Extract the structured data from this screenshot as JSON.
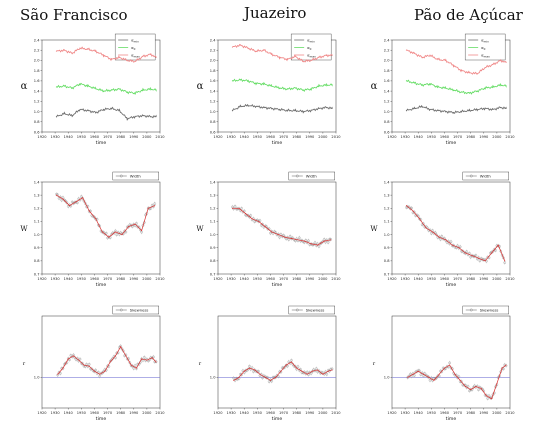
{
  "stations": [
    "São Francisco",
    "Juazeiro",
    "Pão de Açúcar"
  ],
  "colors": {
    "max": "#f08a8a",
    "zero": "#66dd66",
    "min": "#707070",
    "dot": "#888888",
    "fit": "#d93030",
    "ref": "#7d7dd8"
  },
  "chart_data": [
    {
      "station": "São Francisco",
      "type": "line",
      "row": "alpha",
      "xlabel": "time",
      "ylabel": "α",
      "xlim": [
        1920,
        2010
      ],
      "ylim": [
        0.6,
        2.4
      ],
      "xticks": [
        "1920",
        "1930",
        "1940",
        "1950",
        "1960",
        "1970",
        "1980",
        "1990",
        "2000",
        "2010"
      ],
      "yticks": [
        "0.6",
        "0.8",
        "1.0",
        "1.2",
        "1.4",
        "1.6",
        "1.8",
        "2.0",
        "2.2",
        "2.4"
      ],
      "legend": [
        "α_min",
        "α_0",
        "α_max"
      ],
      "legend_position": "top-right",
      "series": [
        {
          "key": "max",
          "x": [
            1931,
            1937,
            1943,
            1949,
            1955,
            1961,
            1967,
            1973,
            1979,
            1985,
            1991,
            1997,
            2003,
            2007
          ],
          "values": [
            2.18,
            2.2,
            2.14,
            2.24,
            2.22,
            2.18,
            2.1,
            2.02,
            2.06,
            2.0,
            1.98,
            2.08,
            2.12,
            2.06
          ]
        },
        {
          "key": "zero",
          "x": [
            1931,
            1937,
            1943,
            1949,
            1955,
            1961,
            1967,
            1973,
            1979,
            1985,
            1991,
            1997,
            2003,
            2007
          ],
          "values": [
            1.48,
            1.5,
            1.46,
            1.54,
            1.5,
            1.45,
            1.4,
            1.42,
            1.44,
            1.38,
            1.36,
            1.42,
            1.44,
            1.42
          ]
        },
        {
          "key": "min",
          "x": [
            1931,
            1937,
            1943,
            1949,
            1955,
            1961,
            1967,
            1973,
            1979,
            1985,
            1991,
            1997,
            2003,
            2007
          ],
          "values": [
            0.9,
            0.96,
            0.92,
            1.04,
            1.02,
            0.98,
            1.04,
            1.06,
            1.02,
            0.86,
            0.9,
            0.92,
            0.9,
            0.9
          ]
        }
      ]
    },
    {
      "station": "Juazeiro",
      "type": "line",
      "row": "alpha",
      "xlabel": "time",
      "ylabel": "α",
      "xlim": [
        1920,
        2010
      ],
      "ylim": [
        0.6,
        2.4
      ],
      "xticks": [
        "1920",
        "1930",
        "1940",
        "1950",
        "1960",
        "1970",
        "1980",
        "1990",
        "2000",
        "2010"
      ],
      "yticks": [
        "0.6",
        "0.8",
        "1.0",
        "1.2",
        "1.4",
        "1.6",
        "1.8",
        "2.0",
        "2.2",
        "2.4"
      ],
      "legend": [
        "α_min",
        "α_0",
        "α_max"
      ],
      "legend_position": "top-right",
      "series": [
        {
          "key": "max",
          "x": [
            1931,
            1937,
            1943,
            1949,
            1955,
            1961,
            1967,
            1973,
            1979,
            1985,
            1991,
            1997,
            2003,
            2007
          ],
          "values": [
            2.26,
            2.3,
            2.24,
            2.18,
            2.2,
            2.12,
            2.06,
            2.02,
            2.08,
            1.98,
            2.0,
            2.06,
            2.1,
            2.1
          ]
        },
        {
          "key": "zero",
          "x": [
            1931,
            1937,
            1943,
            1949,
            1955,
            1961,
            1967,
            1973,
            1979,
            1985,
            1991,
            1997,
            2003,
            2007
          ],
          "values": [
            1.6,
            1.62,
            1.6,
            1.55,
            1.54,
            1.5,
            1.46,
            1.44,
            1.46,
            1.42,
            1.44,
            1.5,
            1.52,
            1.52
          ]
        },
        {
          "key": "min",
          "x": [
            1931,
            1937,
            1943,
            1949,
            1955,
            1961,
            1967,
            1973,
            1979,
            1985,
            1991,
            1997,
            2003,
            2007
          ],
          "values": [
            1.02,
            1.1,
            1.12,
            1.1,
            1.08,
            1.06,
            1.04,
            1.02,
            1.02,
            1.0,
            1.02,
            1.06,
            1.08,
            1.06
          ]
        }
      ]
    },
    {
      "station": "Pão de Açúcar",
      "type": "line",
      "row": "alpha",
      "xlabel": "time",
      "ylabel": "α",
      "xlim": [
        1920,
        2010
      ],
      "ylim": [
        0.6,
        2.4
      ],
      "xticks": [
        "1920",
        "1930",
        "1940",
        "1950",
        "1960",
        "1970",
        "1980",
        "1990",
        "2000",
        "2010"
      ],
      "yticks": [
        "0.6",
        "0.8",
        "1.0",
        "1.2",
        "1.4",
        "1.6",
        "1.8",
        "2.0",
        "2.2",
        "2.4"
      ],
      "legend": [
        "α_min",
        "α_0",
        "α_max"
      ],
      "legend_position": "top-right",
      "series": [
        {
          "key": "max",
          "x": [
            1931,
            1937,
            1943,
            1949,
            1955,
            1961,
            1967,
            1973,
            1979,
            1985,
            1991,
            1997,
            2003,
            2007
          ],
          "values": [
            2.2,
            2.14,
            2.06,
            2.1,
            2.02,
            2.0,
            1.9,
            1.8,
            1.76,
            1.74,
            1.86,
            1.92,
            2.0,
            1.96
          ]
        },
        {
          "key": "zero",
          "x": [
            1931,
            1937,
            1943,
            1949,
            1955,
            1961,
            1967,
            1973,
            1979,
            1985,
            1991,
            1997,
            2003,
            2007
          ],
          "values": [
            1.6,
            1.56,
            1.52,
            1.54,
            1.48,
            1.46,
            1.42,
            1.38,
            1.36,
            1.4,
            1.46,
            1.48,
            1.52,
            1.5
          ]
        },
        {
          "key": "min",
          "x": [
            1931,
            1937,
            1943,
            1949,
            1955,
            1961,
            1967,
            1973,
            1979,
            1985,
            1991,
            1997,
            2003,
            2007
          ],
          "values": [
            1.02,
            1.06,
            1.1,
            1.04,
            1.02,
            1.0,
            0.98,
            1.0,
            1.02,
            1.04,
            1.06,
            1.04,
            1.08,
            1.06
          ]
        }
      ]
    },
    {
      "station": "São Francisco",
      "type": "line",
      "row": "width",
      "xlabel": "time",
      "ylabel": "W",
      "xlim": [
        1920,
        2010
      ],
      "ylim": [
        0.7,
        1.4
      ],
      "xticks": [
        "1920",
        "1930",
        "1940",
        "1950",
        "1960",
        "1970",
        "1980",
        "1990",
        "2000",
        "2010"
      ],
      "yticks": [
        "0.7",
        "0.8",
        "0.9",
        "1.0",
        "1.1",
        "1.2",
        "1.3",
        "1.4"
      ],
      "legend": [
        "Width"
      ],
      "legend_position": "top-right",
      "x": [
        1931,
        1936,
        1941,
        1946,
        1951,
        1956,
        1961,
        1966,
        1971,
        1976,
        1981,
        1986,
        1991,
        1996,
        2001,
        2006
      ],
      "values": [
        1.3,
        1.27,
        1.22,
        1.25,
        1.28,
        1.18,
        1.12,
        1.02,
        0.98,
        1.02,
        1.0,
        1.06,
        1.08,
        1.03,
        1.2,
        1.22
      ]
    },
    {
      "station": "Juazeiro",
      "type": "line",
      "row": "width",
      "xlabel": "time",
      "ylabel": "W",
      "xlim": [
        1920,
        2010
      ],
      "ylim": [
        0.7,
        1.4
      ],
      "xticks": [
        "1920",
        "1930",
        "1940",
        "1950",
        "1960",
        "1970",
        "1980",
        "1990",
        "2000",
        "2010"
      ],
      "yticks": [
        "0.7",
        "0.8",
        "0.9",
        "1.0",
        "1.1",
        "1.2",
        "1.3",
        "1.4"
      ],
      "legend": [
        "Width"
      ],
      "legend_position": "top-right",
      "x": [
        1931,
        1936,
        1941,
        1946,
        1951,
        1956,
        1961,
        1966,
        1971,
        1976,
        1981,
        1986,
        1991,
        1996,
        2001,
        2006
      ],
      "values": [
        1.2,
        1.2,
        1.16,
        1.12,
        1.1,
        1.06,
        1.02,
        1.0,
        0.98,
        0.97,
        0.96,
        0.95,
        0.93,
        0.92,
        0.95,
        0.96
      ]
    },
    {
      "station": "Pão de Açúcar",
      "type": "line",
      "row": "width",
      "xlabel": "time",
      "ylabel": "W",
      "xlim": [
        1920,
        2010
      ],
      "ylim": [
        0.7,
        1.4
      ],
      "xticks": [
        "1920",
        "1930",
        "1940",
        "1950",
        "1960",
        "1970",
        "1980",
        "1990",
        "2000",
        "2010"
      ],
      "yticks": [
        "0.7",
        "0.8",
        "0.9",
        "1.0",
        "1.1",
        "1.2",
        "1.3",
        "1.4"
      ],
      "legend": [
        "Width"
      ],
      "legend_position": "top-right",
      "x": [
        1931,
        1936,
        1941,
        1946,
        1951,
        1956,
        1961,
        1966,
        1971,
        1976,
        1981,
        1986,
        1991,
        1996,
        2001,
        2006
      ],
      "values": [
        1.22,
        1.18,
        1.12,
        1.05,
        1.02,
        0.98,
        0.96,
        0.92,
        0.9,
        0.86,
        0.84,
        0.82,
        0.8,
        0.86,
        0.92,
        0.8
      ]
    },
    {
      "station": "São Francisco",
      "type": "line",
      "row": "skewness",
      "xlabel": "time",
      "ylabel": "r",
      "xlim": [
        1920,
        2010
      ],
      "ylim": [
        0.5,
        2.0
      ],
      "xticks": [
        "1920",
        "1930",
        "1940",
        "1950",
        "1960",
        "1970",
        "1980",
        "1990",
        "2000",
        "2010"
      ],
      "yticks": [
        "1.0"
      ],
      "legend": [
        "Skewness"
      ],
      "legend_position": "top-right",
      "x": [
        1932,
        1936,
        1940,
        1944,
        1948,
        1952,
        1956,
        1960,
        1964,
        1968,
        1972,
        1976,
        1980,
        1984,
        1988,
        1992,
        1996,
        2000,
        2004,
        2007
      ],
      "values": [
        1.05,
        1.15,
        1.3,
        1.35,
        1.28,
        1.2,
        1.18,
        1.1,
        1.05,
        1.1,
        1.25,
        1.35,
        1.5,
        1.35,
        1.2,
        1.15,
        1.3,
        1.28,
        1.32,
        1.25
      ]
    },
    {
      "station": "Juazeiro",
      "type": "line",
      "row": "skewness",
      "xlabel": "time",
      "ylabel": "r",
      "xlim": [
        1920,
        2010
      ],
      "ylim": [
        0.5,
        2.0
      ],
      "xticks": [
        "1920",
        "1930",
        "1940",
        "1950",
        "1960",
        "1970",
        "1980",
        "1990",
        "2000",
        "2010"
      ],
      "yticks": [
        "1.0"
      ],
      "legend": [
        "Skewness"
      ],
      "legend_position": "top-right",
      "x": [
        1932,
        1936,
        1940,
        1944,
        1948,
        1952,
        1956,
        1960,
        1964,
        1968,
        1972,
        1976,
        1980,
        1984,
        1988,
        1992,
        1996,
        2000,
        2004,
        2007
      ],
      "values": [
        0.95,
        1.0,
        1.1,
        1.15,
        1.12,
        1.05,
        1.0,
        0.95,
        1.0,
        1.1,
        1.2,
        1.25,
        1.15,
        1.1,
        1.05,
        1.1,
        1.12,
        1.05,
        1.1,
        1.12
      ]
    },
    {
      "station": "Pão de Açúcar",
      "type": "line",
      "row": "skewness",
      "xlabel": "time",
      "ylabel": "r",
      "xlim": [
        1920,
        2010
      ],
      "ylim": [
        0.5,
        2.0
      ],
      "xticks": [
        "1920",
        "1930",
        "1940",
        "1950",
        "1960",
        "1970",
        "1980",
        "1990",
        "2000",
        "2010"
      ],
      "yticks": [
        "1.0"
      ],
      "legend": [
        "Skewness"
      ],
      "legend_position": "top-right",
      "x": [
        1932,
        1936,
        1940,
        1944,
        1948,
        1952,
        1956,
        1960,
        1964,
        1968,
        1972,
        1976,
        1980,
        1984,
        1988,
        1992,
        1996,
        2000,
        2004,
        2007
      ],
      "values": [
        1.0,
        1.05,
        1.1,
        1.05,
        1.0,
        0.95,
        1.05,
        1.15,
        1.2,
        1.05,
        0.95,
        0.85,
        0.8,
        0.85,
        0.82,
        0.7,
        0.65,
        0.9,
        1.15,
        1.2
      ]
    }
  ]
}
